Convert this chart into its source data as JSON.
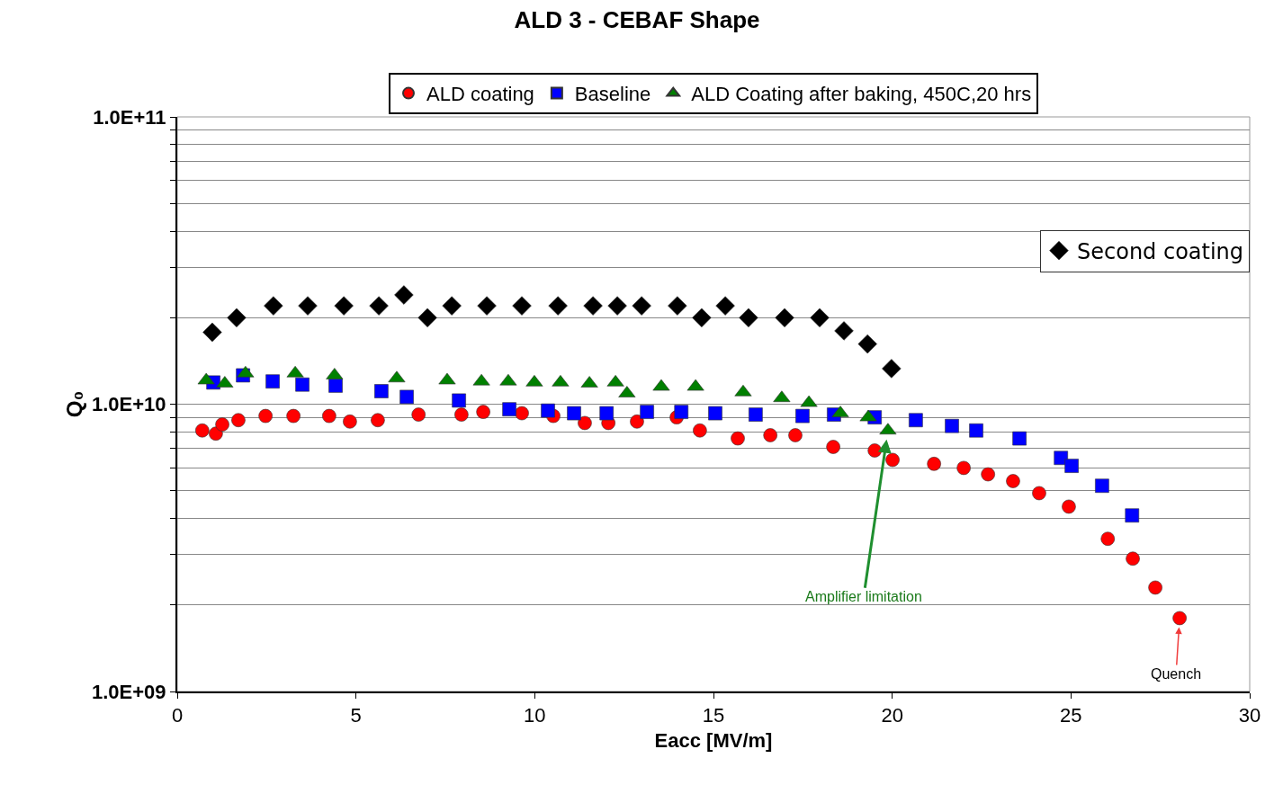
{
  "chart_data": {
    "type": "scatter",
    "title": "ALD 3 - CEBAF Shape",
    "xlabel": "Eacc [MV/m]",
    "ylabel": "Q₀",
    "log": "y",
    "grid": "y",
    "legend": "top",
    "xlim": [
      0,
      30
    ],
    "xticks": [
      0,
      5,
      10,
      15,
      20,
      25,
      30
    ],
    "ylim": [
      1000000000.0,
      100000000000.0
    ],
    "yticks": [
      {
        "value": 1000000000.0,
        "label": "1.0E+09"
      },
      {
        "value": 2000000000.0,
        "label": null
      },
      {
        "value": 3000000000.0,
        "label": null
      },
      {
        "value": 4000000000.0,
        "label": null
      },
      {
        "value": 5000000000.0,
        "label": null
      },
      {
        "value": 6000000000.0,
        "label": null
      },
      {
        "value": 7000000000.0,
        "label": null
      },
      {
        "value": 8000000000.0,
        "label": null
      },
      {
        "value": 9000000000.0,
        "label": null
      },
      {
        "value": 10000000000.0,
        "label": "1.0E+10"
      },
      {
        "value": 20000000000.0,
        "label": null
      },
      {
        "value": 30000000000.0,
        "label": null
      },
      {
        "value": 40000000000.0,
        "label": null
      },
      {
        "value": 50000000000.0,
        "label": null
      },
      {
        "value": 60000000000.0,
        "label": null
      },
      {
        "value": 70000000000.0,
        "label": null
      },
      {
        "value": 80000000000.0,
        "label": null
      },
      {
        "value": 90000000000.0,
        "label": null
      },
      {
        "value": 100000000000.0,
        "label": "1.0E+11"
      }
    ],
    "series": [
      {
        "name": "ALD coating",
        "color": "#ff0000",
        "marker": "circle",
        "x": [
          0.7,
          1.08,
          1.26,
          1.71,
          2.47,
          3.25,
          4.25,
          4.83,
          5.61,
          6.75,
          7.95,
          8.56,
          9.64,
          10.52,
          11.4,
          12.06,
          12.86,
          13.97,
          14.62,
          15.68,
          16.59,
          17.29,
          18.35,
          19.51,
          20.01,
          21.17,
          22.0,
          22.68,
          23.38,
          24.11,
          24.94,
          26.03,
          26.73,
          27.36,
          28.04
        ],
        "values": [
          8100000000.0,
          7900000000.0,
          8500000000.0,
          8800000000.0,
          9100000000.0,
          9100000000.0,
          9100000000.0,
          8700000000.0,
          8800000000.0,
          9200000000.0,
          9200000000.0,
          9400000000.0,
          9300000000.0,
          9100000000.0,
          8600000000.0,
          8600000000.0,
          8700000000.0,
          9000000000.0,
          8100000000.0,
          7600000000.0,
          7800000000.0,
          7800000000.0,
          7100000000.0,
          6900000000.0,
          6400000000.0,
          6200000000.0,
          6000000000.0,
          5700000000.0,
          5400000000.0,
          4900000000.0,
          4400000000.0,
          3400000000.0,
          2900000000.0,
          2300000000.0,
          1800000000.0
        ]
      },
      {
        "name": "Baseline",
        "color": "#0000ff",
        "marker": "square",
        "x": [
          1.01,
          1.84,
          2.67,
          3.5,
          4.43,
          5.71,
          6.42,
          7.88,
          9.29,
          10.37,
          11.1,
          12.01,
          13.14,
          14.1,
          15.05,
          16.18,
          17.49,
          18.37,
          19.51,
          20.66,
          21.67,
          22.35,
          23.56,
          24.72,
          25.02,
          25.87,
          26.71
        ],
        "values": [
          11900000000.0,
          12600000000.0,
          12000000000.0,
          11700000000.0,
          11600000000.0,
          11100000000.0,
          10600000000.0,
          10300000000.0,
          9600000000.0,
          9500000000.0,
          9300000000.0,
          9300000000.0,
          9400000000.0,
          9400000000.0,
          9300000000.0,
          9200000000.0,
          9100000000.0,
          9200000000.0,
          9000000000.0,
          8800000000.0,
          8400000000.0,
          8100000000.0,
          7600000000.0,
          6500000000.0,
          6100000000.0,
          5200000000.0,
          4100000000.0
        ]
      },
      {
        "name": "ALD Coating after baking, 450C,20 hrs",
        "color": "#008000",
        "marker": "triangle",
        "x": [
          0.81,
          1.33,
          1.91,
          3.3,
          4.4,
          6.14,
          7.55,
          8.51,
          9.26,
          9.99,
          10.72,
          11.53,
          12.26,
          12.58,
          13.54,
          14.5,
          15.83,
          16.91,
          17.67,
          18.55,
          19.33,
          19.88
        ],
        "values": [
          12100000000.0,
          11800000000.0,
          12800000000.0,
          12800000000.0,
          12600000000.0,
          12300000000.0,
          12100000000.0,
          12000000000.0,
          12000000000.0,
          11900000000.0,
          11900000000.0,
          11800000000.0,
          11900000000.0,
          10900000000.0,
          11500000000.0,
          11500000000.0,
          11000000000.0,
          10500000000.0,
          10100000000.0,
          9300000000.0,
          9000000000.0,
          8100000000.0
        ]
      },
      {
        "name": "Second coating",
        "color": "#000000",
        "marker": "diamond",
        "x": [
          0.98,
          1.66,
          2.69,
          3.65,
          4.66,
          5.64,
          6.34,
          7.0,
          7.68,
          8.66,
          9.64,
          10.65,
          11.63,
          12.31,
          12.99,
          13.99,
          14.67,
          15.33,
          15.98,
          16.99,
          17.97,
          18.65,
          19.31,
          19.98
        ],
        "values": [
          17800000000.0,
          20000000000.0,
          22000000000.0,
          22000000000.0,
          22000000000.0,
          22000000000.0,
          24000000000.0,
          20000000000.0,
          22000000000.0,
          22000000000.0,
          22000000000.0,
          22000000000.0,
          22000000000.0,
          22000000000.0,
          22000000000.0,
          22000000000.0,
          20000000000.0,
          22000000000.0,
          20000000000.0,
          20000000000.0,
          20000000000.0,
          18000000000.0,
          16200000000.0,
          13300000000.0
        ]
      }
    ],
    "annotations": [
      {
        "text": "Amplifier limitation",
        "x": 19.88,
        "y": 8100000000.0
      },
      {
        "text": "Quench",
        "x": 28.04,
        "y": 1800000000.0
      }
    ]
  }
}
